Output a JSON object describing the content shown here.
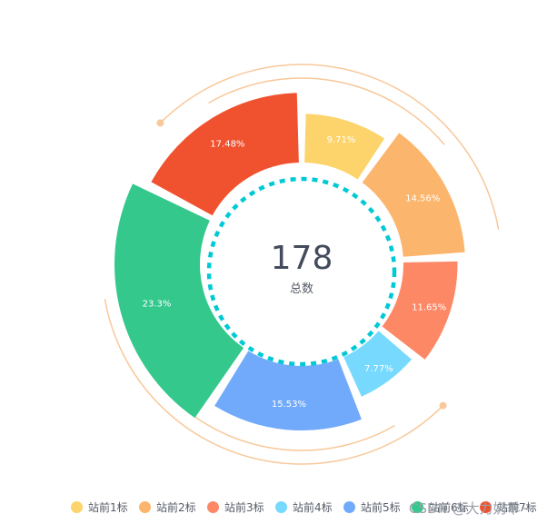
{
  "center": {
    "total": "178",
    "label": "总数"
  },
  "colors": {
    "ring": "#00c9d6",
    "decor": "#f8c89a",
    "slice_label": "#ffffff",
    "center_value": "#444b5c",
    "center_label": "#555a66"
  },
  "chart_data": {
    "type": "pie",
    "variant": "rose-donut",
    "categories": [
      "站前1标",
      "站前2标",
      "站前3标",
      "站前4标",
      "站前5标",
      "站前6标",
      "站前7标"
    ],
    "values": [
      9.71,
      14.56,
      11.65,
      7.77,
      15.53,
      23.3,
      17.48
    ],
    "value_labels": [
      "9.71%",
      "14.56%",
      "11.65%",
      "7.77%",
      "15.53%",
      "23.3%",
      "17.48%"
    ],
    "colors": [
      "#fdd46b",
      "#fcb56c",
      "#fd8866",
      "#77d9fd",
      "#72aafb",
      "#34c88d",
      "#f0522f"
    ],
    "legend": "bottom"
  },
  "watermark": "CSDN @大力奶乖~"
}
